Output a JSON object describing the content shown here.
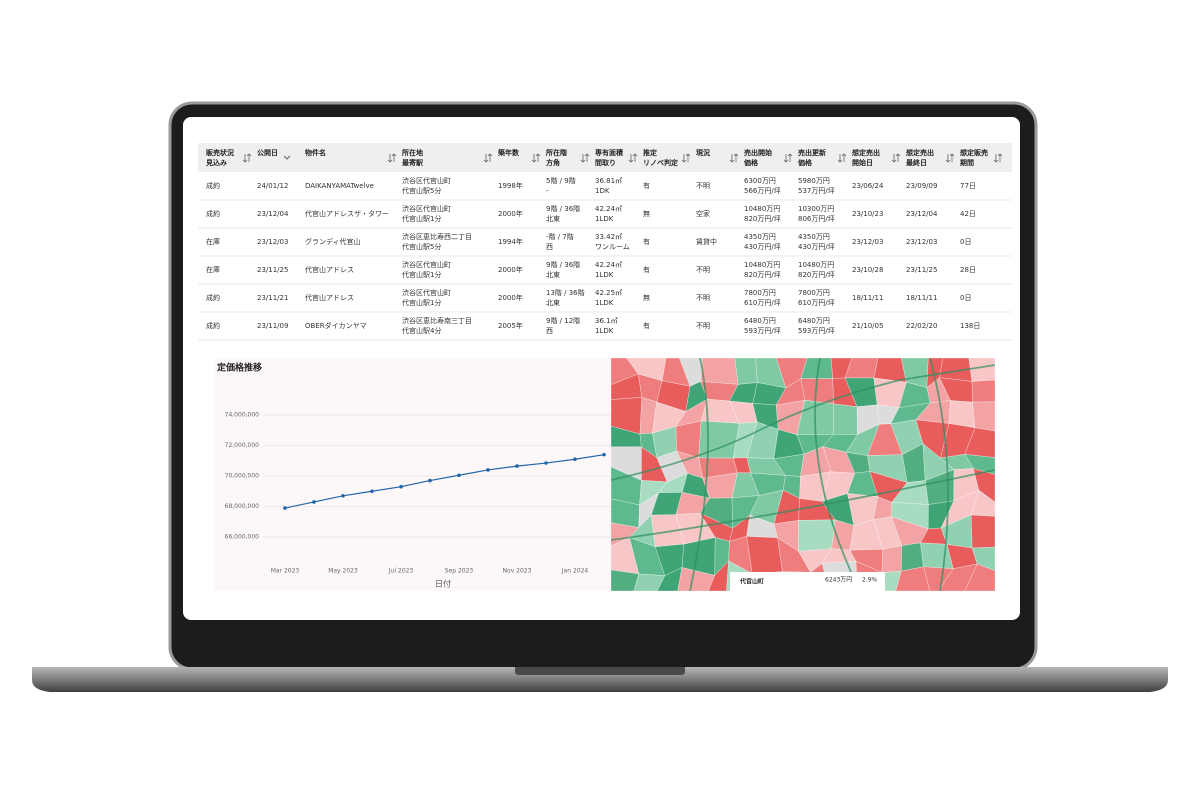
{
  "table": {
    "columns": [
      [
        "販売状況",
        "見込み"
      ],
      [
        "公開日"
      ],
      [
        "物件名"
      ],
      [
        "所在地",
        "最寄駅"
      ],
      [
        "築年数"
      ],
      [
        "所在階",
        "方角"
      ],
      [
        "専有面積",
        "間取り"
      ],
      [
        "推定",
        "リノベ判定"
      ],
      [
        "現況"
      ],
      [
        "売出開始",
        "価格"
      ],
      [
        "売出更新",
        "価格"
      ],
      [
        "想定売出",
        "開始日"
      ],
      [
        "想定売出",
        "最終日"
      ],
      [
        "想定販売",
        "期間"
      ]
    ],
    "rows": [
      [
        "成約",
        "24/01/12",
        "DAIKANYAMATwelve",
        [
          "渋谷区代官山町",
          "代官山駅5分"
        ],
        "1998年",
        [
          "5階 / 9階",
          "-"
        ],
        [
          "36.81㎡",
          "1DK"
        ],
        "有",
        "不明",
        [
          "6300万円",
          "566万円/坪"
        ],
        [
          "5980万円",
          "537万円/坪"
        ],
        "23/06/24",
        "23/09/09",
        "77日"
      ],
      [
        "成約",
        "23/12/04",
        "代官山アドレスザ・タワー",
        [
          "渋谷区代官山町",
          "代官山駅1分"
        ],
        "2000年",
        [
          "9階 / 36階",
          "北東"
        ],
        [
          "42.24㎡",
          "1LDK"
        ],
        "無",
        "空家",
        [
          "10480万円",
          "820万円/坪"
        ],
        [
          "10300万円",
          "806万円/坪"
        ],
        "23/10/23",
        "23/12/04",
        "42日"
      ],
      [
        "在庫",
        "23/12/03",
        "グランディ代官山",
        [
          "渋谷区恵比寿西二丁目",
          "代官山駅5分"
        ],
        "1994年",
        [
          "-階 / 7階",
          "西"
        ],
        [
          "33.42㎡",
          "ワンルーム"
        ],
        "有",
        "賃貸中",
        [
          "4350万円",
          "430万円/坪"
        ],
        [
          "4350万円",
          "430万円/坪"
        ],
        "23/12/03",
        "23/12/03",
        "0日"
      ],
      [
        "在庫",
        "23/11/25",
        "代官山アドレス",
        [
          "渋谷区代官山町",
          "代官山駅1分"
        ],
        "2000年",
        [
          "9階 / 36階",
          "北東"
        ],
        [
          "42.24㎡",
          "1LDK"
        ],
        "有",
        "不明",
        [
          "10480万円",
          "820万円/坪"
        ],
        [
          "10480万円",
          "820万円/坪"
        ],
        "23/10/28",
        "23/11/25",
        "28日"
      ],
      [
        "成約",
        "23/11/21",
        "代官山アドレス",
        [
          "渋谷区代官山町",
          "代官山駅1分"
        ],
        "2000年",
        [
          "13階 / 36階",
          "北東"
        ],
        [
          "42.25㎡",
          "1LDK"
        ],
        "無",
        "不明",
        [
          "7800万円",
          "610万円/坪"
        ],
        [
          "7800万円",
          "610万円/坪"
        ],
        "18/11/11",
        "18/11/11",
        "0日"
      ],
      [
        "成約",
        "23/11/09",
        "OBERダイカンヤマ",
        [
          "渋谷区恵比寿南三丁目",
          "代官山駅4分"
        ],
        "2005年",
        [
          "9階 / 12階",
          "西"
        ],
        [
          "36.1㎡",
          "1LDK"
        ],
        "有",
        "不明",
        [
          "6480万円",
          "593万円/坪"
        ],
        [
          "6480万円",
          "593万円/坪"
        ],
        "21/10/05",
        "22/02/20",
        "138日"
      ]
    ]
  },
  "chart_data": {
    "type": "line",
    "title": "定価格推移",
    "x_label": "日付",
    "categories": [
      "Mar 2023",
      null,
      "May 2023",
      null,
      "Jul 2023",
      null,
      "Sep 2023",
      null,
      "Nov 2023",
      null,
      "Jan 2024",
      null
    ],
    "values": [
      67900000,
      68300000,
      68700000,
      69000000,
      69300000,
      69700000,
      70050000,
      70400000,
      70650000,
      70850000,
      71100000,
      71400000
    ],
    "color": "#2166ac",
    "ylim": [
      64500000,
      75000000
    ],
    "yticks": [
      {
        "value": 66000000,
        "label": "66,000,000"
      },
      {
        "value": 68000000,
        "label": "68,000,000"
      },
      {
        "value": 70000000,
        "label": "70,000,000"
      },
      {
        "value": 72000000,
        "label": "72,000,000"
      },
      {
        "value": 74000000,
        "label": "74,000,000"
      }
    ],
    "grid": true
  },
  "map": {
    "area": "代官山町",
    "average_price": "6243万円",
    "rate": "2.9%"
  }
}
